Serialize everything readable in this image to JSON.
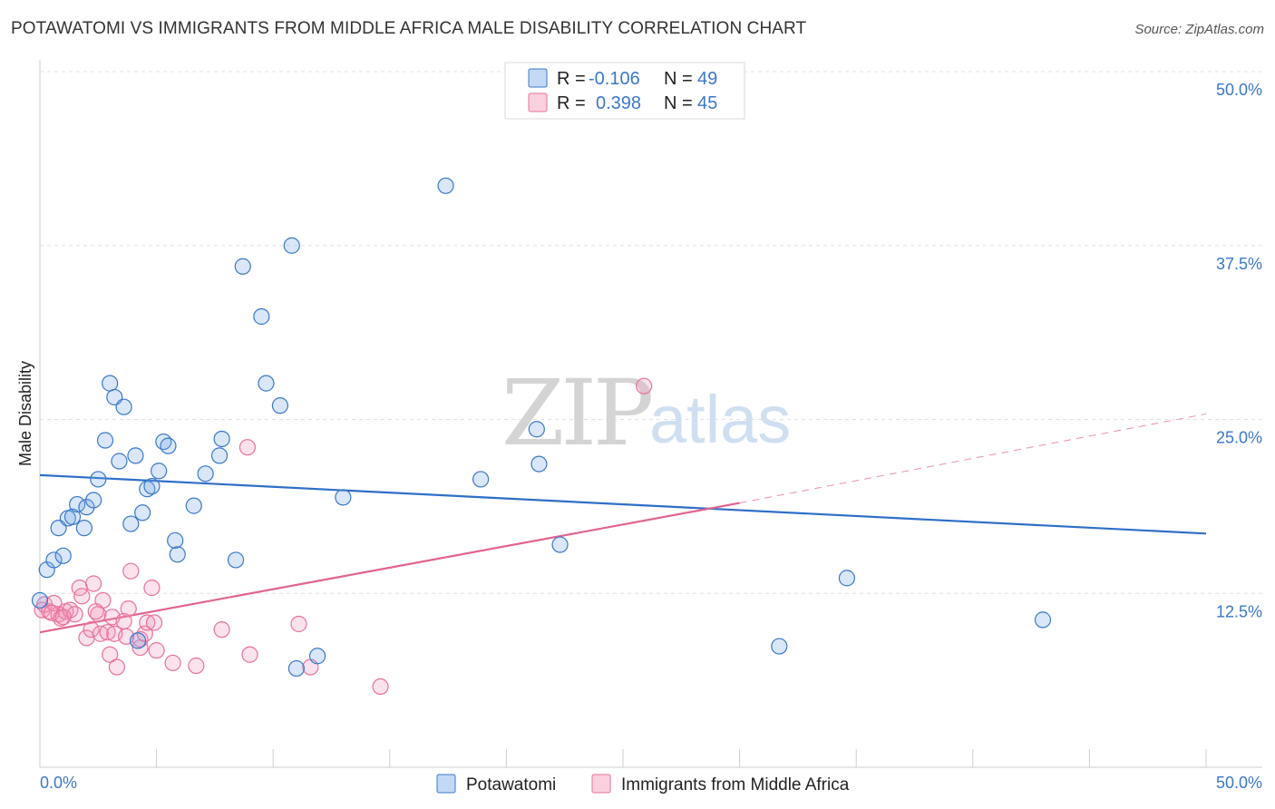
{
  "title": "POTAWATOMI VS IMMIGRANTS FROM MIDDLE AFRICA MALE DISABILITY CORRELATION CHART",
  "source": "Source: ZipAtlas.com",
  "watermark": {
    "zip": "ZIP",
    "atlas": "atlas"
  },
  "colors": {
    "blue": "#3a78c9",
    "blue_line": "#2f6fc7",
    "pink": "#e8729a",
    "pink_line": "#e0648f",
    "blue_fill": "rgba(120,170,235,0.28)",
    "pink_fill": "rgba(245,150,185,0.28)"
  },
  "legend": {
    "rows": [
      {
        "r_label": "R =",
        "r_value": "-0.106",
        "n_label": "N =",
        "n_value": "49"
      },
      {
        "r_label": "R =",
        "r_value": "0.398",
        "n_label": "N =",
        "n_value": "45"
      }
    ]
  },
  "chart_data": {
    "type": "scatter",
    "title": "POTAWATOMI VS IMMIGRANTS FROM MIDDLE AFRICA MALE DISABILITY CORRELATION CHART",
    "xlabel": "",
    "ylabel": "Male Disability",
    "xlim": [
      0,
      50
    ],
    "ylim": [
      0,
      50
    ],
    "x_tick_labels": [
      "0.0%",
      "50.0%"
    ],
    "y_ticks": [
      12.5,
      25.0,
      37.5,
      50.0
    ],
    "y_tick_labels": [
      "12.5%",
      "25.0%",
      "37.5%",
      "50.0%"
    ],
    "grid": true,
    "legend_position": "top-center",
    "series": [
      {
        "name": "Potawatomi",
        "color": "#3a78c9",
        "r": -0.106,
        "n": 49,
        "trend": {
          "x": [
            0,
            50
          ],
          "y": [
            21.0,
            16.8
          ]
        },
        "points": [
          [
            0.0,
            12.0
          ],
          [
            0.3,
            14.2
          ],
          [
            0.6,
            14.9
          ],
          [
            0.8,
            17.2
          ],
          [
            1.0,
            15.2
          ],
          [
            1.2,
            17.9
          ],
          [
            1.4,
            18.0
          ],
          [
            1.6,
            18.9
          ],
          [
            1.9,
            17.2
          ],
          [
            2.0,
            18.7
          ],
          [
            2.3,
            19.2
          ],
          [
            2.5,
            20.7
          ],
          [
            2.8,
            23.5
          ],
          [
            3.0,
            27.6
          ],
          [
            3.2,
            26.6
          ],
          [
            3.4,
            22.0
          ],
          [
            3.6,
            25.9
          ],
          [
            3.9,
            17.5
          ],
          [
            4.1,
            22.4
          ],
          [
            4.2,
            9.1
          ],
          [
            4.4,
            18.3
          ],
          [
            4.6,
            20.0
          ],
          [
            4.8,
            20.2
          ],
          [
            5.1,
            21.3
          ],
          [
            5.3,
            23.4
          ],
          [
            5.5,
            23.1
          ],
          [
            5.8,
            16.3
          ],
          [
            5.9,
            15.3
          ],
          [
            6.6,
            18.8
          ],
          [
            7.1,
            21.1
          ],
          [
            7.7,
            22.4
          ],
          [
            7.8,
            23.6
          ],
          [
            8.4,
            14.9
          ],
          [
            8.7,
            36.0
          ],
          [
            9.5,
            32.4
          ],
          [
            9.7,
            27.6
          ],
          [
            10.3,
            26.0
          ],
          [
            10.8,
            37.5
          ],
          [
            11.0,
            7.1
          ],
          [
            11.9,
            8.0
          ],
          [
            13.0,
            19.4
          ],
          [
            17.4,
            41.8
          ],
          [
            18.9,
            20.7
          ],
          [
            21.3,
            24.3
          ],
          [
            21.4,
            21.8
          ],
          [
            22.3,
            16.0
          ],
          [
            31.7,
            8.7
          ],
          [
            34.6,
            13.6
          ],
          [
            43.0,
            10.6
          ]
        ]
      },
      {
        "name": "Immigrants from Middle Africa",
        "color": "#e8729a",
        "r": 0.398,
        "n": 45,
        "trend": {
          "x": [
            0,
            30
          ],
          "y": [
            9.7,
            19.0
          ]
        },
        "trend_extension": {
          "x": [
            30,
            50
          ],
          "y": [
            19.0,
            25.4
          ]
        },
        "points": [
          [
            0.1,
            11.3
          ],
          [
            0.2,
            11.7
          ],
          [
            0.4,
            11.2
          ],
          [
            0.6,
            11.8
          ],
          [
            0.8,
            11.0
          ],
          [
            0.9,
            10.7
          ],
          [
            1.1,
            11.2
          ],
          [
            1.3,
            11.3
          ],
          [
            1.5,
            11.0
          ],
          [
            1.7,
            12.9
          ],
          [
            1.8,
            12.3
          ],
          [
            2.0,
            9.3
          ],
          [
            2.2,
            9.9
          ],
          [
            2.3,
            13.2
          ],
          [
            2.5,
            11.0
          ],
          [
            2.6,
            9.6
          ],
          [
            2.7,
            12.0
          ],
          [
            2.9,
            9.7
          ],
          [
            3.0,
            8.1
          ],
          [
            3.1,
            10.8
          ],
          [
            3.2,
            9.6
          ],
          [
            3.3,
            7.2
          ],
          [
            3.6,
            10.5
          ],
          [
            3.7,
            9.4
          ],
          [
            3.8,
            11.4
          ],
          [
            3.9,
            14.1
          ],
          [
            4.3,
            8.6
          ],
          [
            4.3,
            9.2
          ],
          [
            4.5,
            9.6
          ],
          [
            4.6,
            10.4
          ],
          [
            4.8,
            12.9
          ],
          [
            4.9,
            10.4
          ],
          [
            5.0,
            8.4
          ],
          [
            5.7,
            7.5
          ],
          [
            6.7,
            7.3
          ],
          [
            7.8,
            9.9
          ],
          [
            8.9,
            23.0
          ],
          [
            9.0,
            8.1
          ],
          [
            11.1,
            10.3
          ],
          [
            11.6,
            7.2
          ],
          [
            14.6,
            5.8
          ],
          [
            25.9,
            27.4
          ],
          [
            0.5,
            11.1
          ],
          [
            1.0,
            10.8
          ],
          [
            2.4,
            11.2
          ]
        ]
      }
    ]
  },
  "bottom_legend": [
    {
      "label": "Potawatomi"
    },
    {
      "label": "Immigrants from Middle Africa"
    }
  ]
}
